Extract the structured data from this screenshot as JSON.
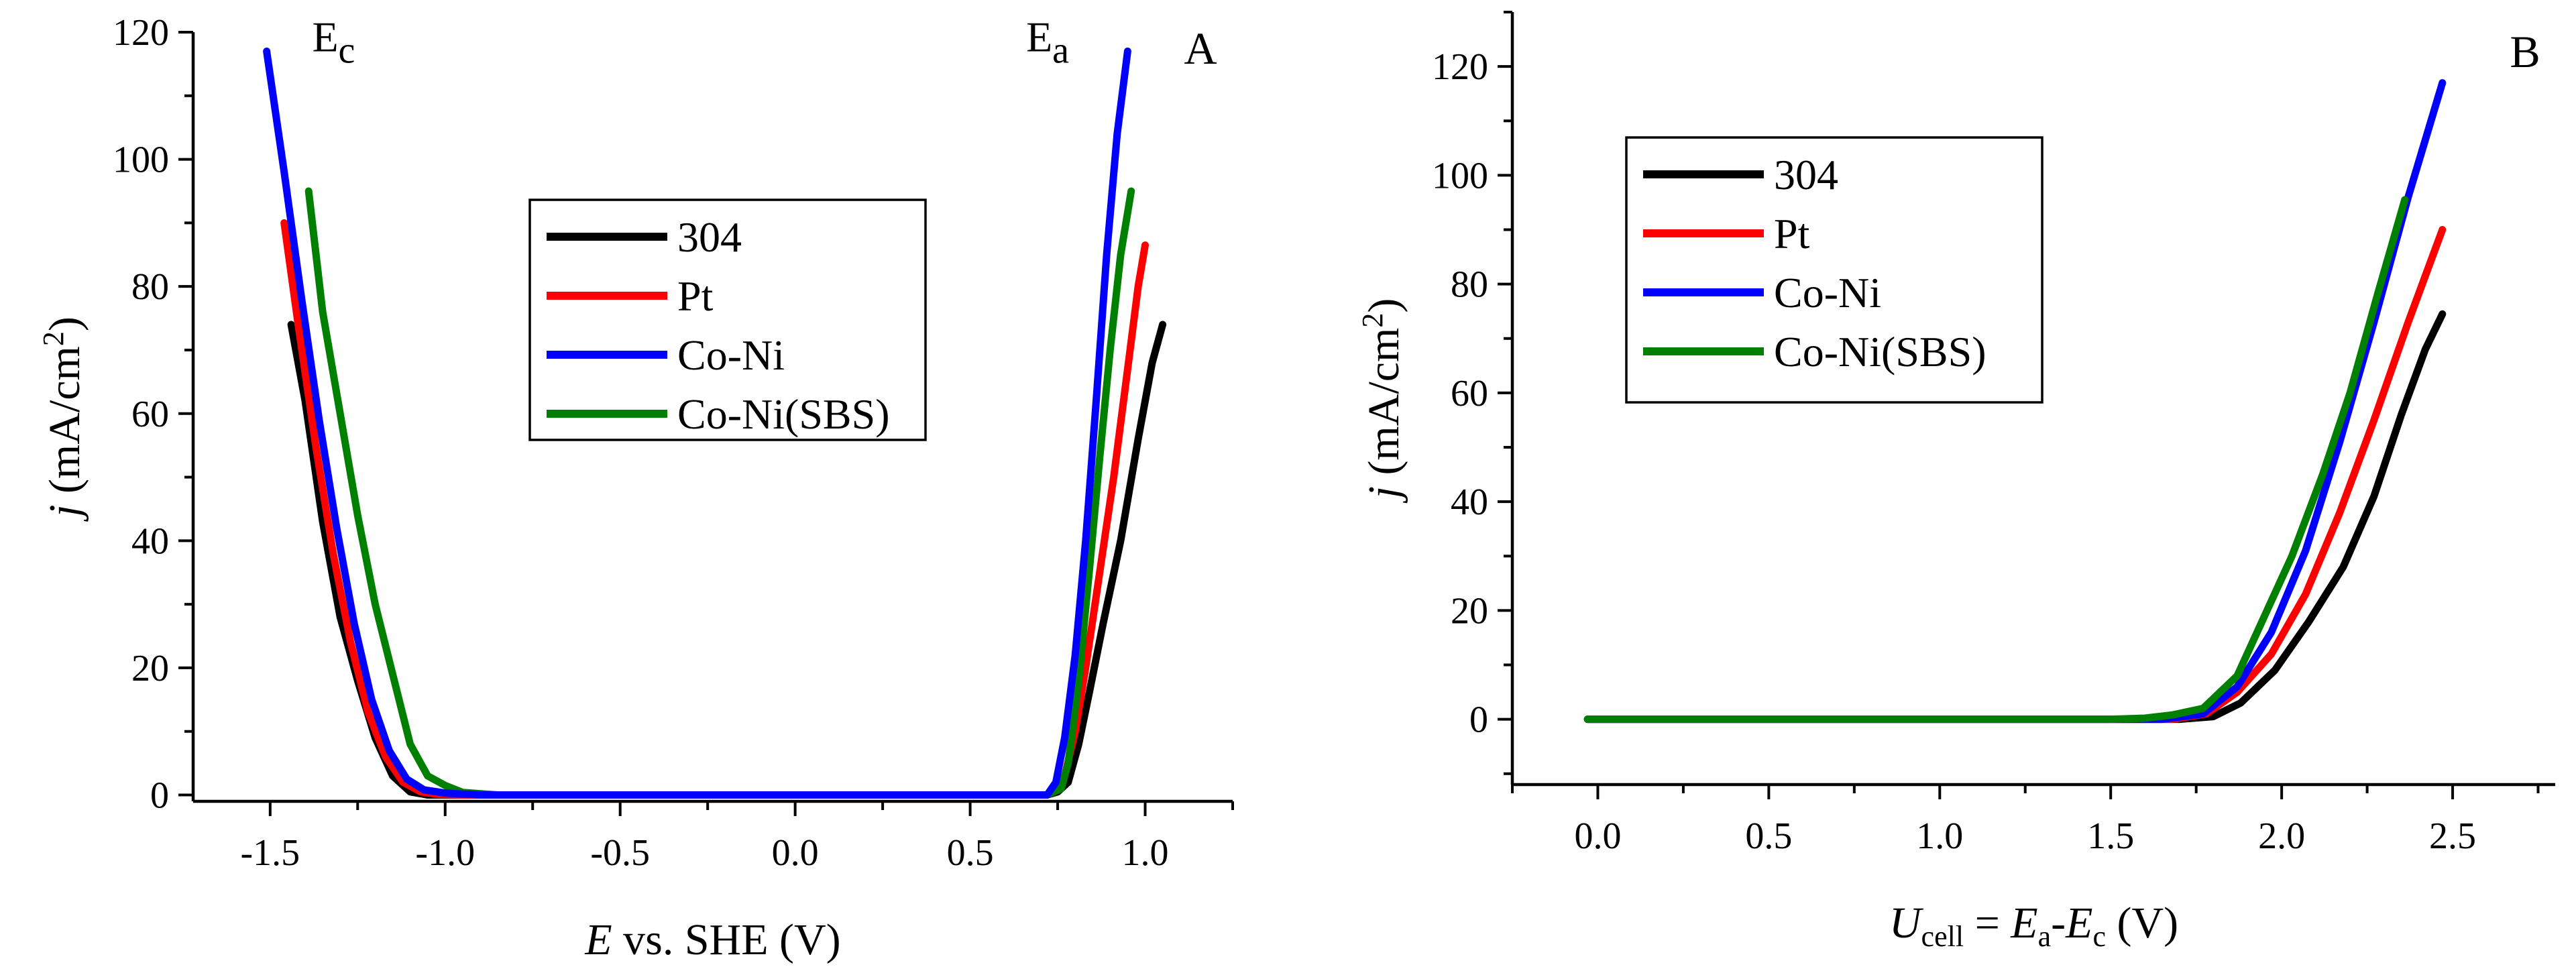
{
  "chart_data": [
    {
      "id": "A",
      "type": "line",
      "panel_label": "A",
      "xlabel": {
        "italic": "E",
        "rest": " vs. SHE (V)"
      },
      "ylabel": {
        "italic": "j",
        "rest": " (mA/cm",
        "sup": "2",
        "tail": ")"
      },
      "xlim": [
        -1.72,
        1.25
      ],
      "ylim": [
        -1,
        120
      ],
      "xticks": [
        -1.5,
        -1.0,
        -0.5,
        0.0,
        0.5,
        1.0
      ],
      "xtick_labels": [
        "-1.5",
        "-1.0",
        "-0.5",
        "0.0",
        "0.5",
        "1.0"
      ],
      "yticks": [
        0,
        20,
        40,
        60,
        80,
        100,
        120
      ],
      "ytick_labels": [
        "0",
        "20",
        "40",
        "60",
        "80",
        "100",
        "120"
      ],
      "annotations": [
        {
          "name": "ec-label",
          "base": "E",
          "sub": "c",
          "at": [
            -1.38,
            117
          ]
        },
        {
          "name": "ea-label",
          "base": "E",
          "sub": "a",
          "at": [
            0.66,
            117
          ]
        }
      ],
      "legend": {
        "position": "center"
      },
      "series": [
        {
          "name": "304",
          "color": "#000000",
          "x": [
            -1.44,
            -1.4,
            -1.35,
            -1.3,
            -1.25,
            -1.2,
            -1.15,
            -1.1,
            -1.05,
            -1.0,
            -0.9,
            -0.8,
            -0.5,
            0.0,
            0.5,
            0.72,
            0.75,
            0.78,
            0.81,
            0.84,
            0.88,
            0.93,
            0.98,
            1.02,
            1.05
          ],
          "y": [
            74,
            62,
            43,
            28,
            18,
            9,
            3,
            0.5,
            0,
            0,
            0,
            0,
            0,
            0,
            0,
            0,
            0.5,
            2,
            8,
            16,
            27,
            40,
            56,
            68,
            74
          ]
        },
        {
          "name": "Pt",
          "color": "#ff0000",
          "x": [
            -1.46,
            -1.42,
            -1.37,
            -1.32,
            -1.27,
            -1.22,
            -1.17,
            -1.12,
            -1.07,
            -1.02,
            -0.95,
            -0.85,
            -0.5,
            0.0,
            0.5,
            0.72,
            0.74,
            0.77,
            0.8,
            0.83,
            0.87,
            0.91,
            0.95,
            0.98,
            1.0
          ],
          "y": [
            90,
            74,
            55,
            38,
            24,
            13,
            6,
            2,
            0.5,
            0.1,
            0,
            0,
            0,
            0,
            0,
            0,
            0.5,
            3,
            10,
            20,
            35,
            50,
            67,
            80,
            86.5
          ]
        },
        {
          "name": "Co-Ni",
          "color": "#0000ff",
          "x": [
            -1.51,
            -1.46,
            -1.41,
            -1.36,
            -1.31,
            -1.26,
            -1.21,
            -1.16,
            -1.11,
            -1.06,
            -1.0,
            -0.9,
            -0.8,
            -0.5,
            0.0,
            0.5,
            0.72,
            0.745,
            0.77,
            0.8,
            0.83,
            0.86,
            0.89,
            0.92,
            0.95
          ],
          "y": [
            117,
            98,
            78,
            59,
            42,
            27,
            15,
            7,
            2.5,
            0.8,
            0.3,
            0,
            0,
            0,
            0,
            0,
            0,
            2,
            9,
            22,
            40,
            62,
            85,
            104,
            117
          ]
        },
        {
          "name": "Co-Ni(SBS)",
          "color": "#008000",
          "x": [
            -1.39,
            -1.35,
            -1.3,
            -1.25,
            -1.2,
            -1.15,
            -1.1,
            -1.05,
            -1.0,
            -0.95,
            -0.85,
            -0.5,
            0.0,
            0.5,
            0.72,
            0.76,
            0.78,
            0.81,
            0.84,
            0.87,
            0.9,
            0.93,
            0.96
          ],
          "y": [
            95,
            76,
            60,
            44,
            30,
            19,
            8,
            3,
            1.5,
            0.4,
            0,
            0,
            0,
            0,
            0,
            1,
            5,
            18,
            35,
            53,
            70,
            85,
            95
          ]
        }
      ]
    },
    {
      "id": "B",
      "type": "line",
      "panel_label": "B",
      "xlabel": {
        "italic": "U",
        "sub": "cell",
        "eq": " = ",
        "ea_italic": "E",
        "ea_sub": "a",
        "dash": "-",
        "ec_italic": "E",
        "ec_sub": "c",
        "tail": "  (V)"
      },
      "ylabel": {
        "italic": "j",
        "rest": " (mA/cm",
        "sup": "2",
        "tail": ")"
      },
      "xlim": [
        -0.25,
        2.8
      ],
      "ylim": [
        -12,
        130
      ],
      "xticks": [
        0.0,
        0.5,
        1.0,
        1.5,
        2.0,
        2.5
      ],
      "xtick_labels": [
        "0.0",
        "0.5",
        "1.0",
        "1.5",
        "2.0",
        "2.5"
      ],
      "yticks": [
        0,
        20,
        40,
        60,
        80,
        100,
        120
      ],
      "ytick_labels": [
        "0",
        "20",
        "40",
        "60",
        "80",
        "100",
        "120"
      ],
      "legend": {
        "position": "top-left"
      },
      "series": [
        {
          "name": "304",
          "color": "#000000",
          "x": [
            -0.03,
            0.5,
            1.0,
            1.5,
            1.7,
            1.8,
            1.88,
            1.98,
            2.08,
            2.18,
            2.27,
            2.35,
            2.42,
            2.47
          ],
          "y": [
            0,
            0,
            0,
            0,
            0,
            0.5,
            3,
            9,
            18,
            28,
            41,
            56,
            68,
            74.5
          ]
        },
        {
          "name": "Pt",
          "color": "#ff0000",
          "x": [
            -0.03,
            0.5,
            1.0,
            1.5,
            1.68,
            1.78,
            1.87,
            1.97,
            2.07,
            2.17,
            2.27,
            2.37,
            2.47
          ],
          "y": [
            0,
            0,
            0,
            0,
            0,
            1,
            5,
            12,
            23,
            38,
            55,
            73,
            90
          ]
        },
        {
          "name": "Co-Ni",
          "color": "#0000ff",
          "x": [
            -0.03,
            0.5,
            1.0,
            1.5,
            1.65,
            1.77,
            1.87,
            1.97,
            2.07,
            2.17,
            2.27,
            2.37,
            2.47
          ],
          "y": [
            0,
            0,
            0,
            0,
            0,
            1,
            6,
            16,
            31,
            51,
            73,
            96,
            117
          ]
        },
        {
          "name": "Co-Ni(SBS)",
          "color": "#008000",
          "x": [
            -0.03,
            0.5,
            1.0,
            1.5,
            1.6,
            1.68,
            1.77,
            1.87,
            1.95,
            2.03,
            2.12,
            2.2,
            2.28,
            2.36
          ],
          "y": [
            0,
            0,
            0,
            0,
            0.2,
            0.8,
            2,
            8,
            19,
            30,
            45,
            60,
            78,
            95.5
          ]
        }
      ]
    }
  ]
}
